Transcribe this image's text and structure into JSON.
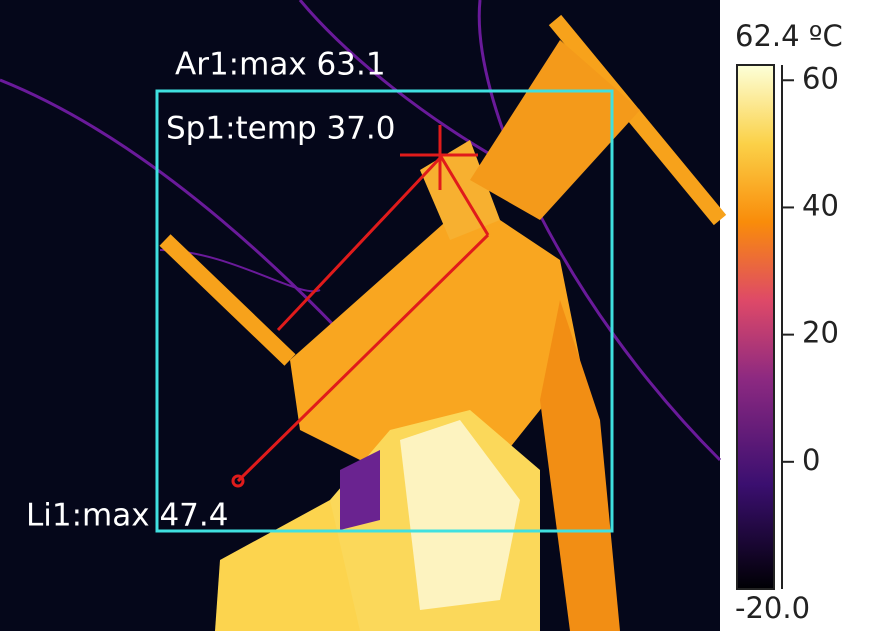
{
  "overlays": [
    {
      "label": "Ar1:max 63.1"
    },
    {
      "label": "Sp1:temp 37.0"
    },
    {
      "label": "Li1:max 47.4"
    }
  ],
  "scale": {
    "max": {
      "value": 62.4,
      "label": "62.4 ºC"
    },
    "min": {
      "value": -20,
      "label": "-20.0"
    },
    "ticks": [
      60,
      40,
      20,
      0
    ]
  }
}
